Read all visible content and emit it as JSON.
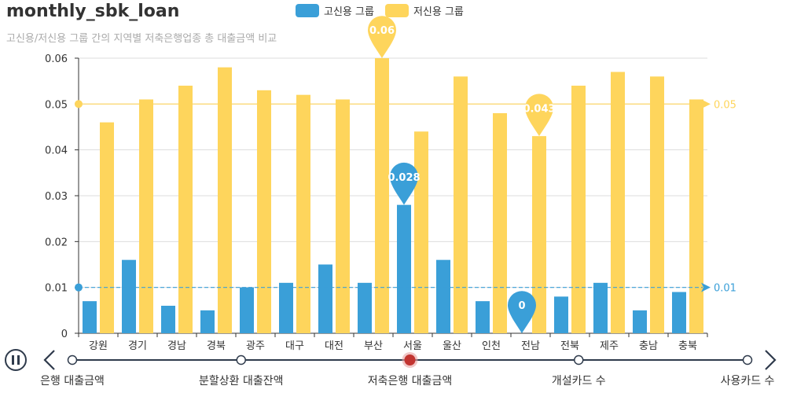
{
  "chart_data": {
    "type": "bar",
    "title": "monthly_sbk_loan",
    "subtitle": "고신용/저신용 그룹 간의 지역별 저축은행업종 총 대출금액 비교",
    "categories": [
      "강원",
      "경기",
      "경남",
      "경북",
      "광주",
      "대구",
      "대전",
      "부산",
      "서울",
      "울산",
      "인천",
      "전남",
      "전북",
      "제주",
      "충남",
      "충북"
    ],
    "series": [
      {
        "name": "고신용 그룹",
        "color": "#3a9fd8",
        "values": [
          0.007,
          0.016,
          0.006,
          0.005,
          0.01,
          0.011,
          0.015,
          0.011,
          0.028,
          0.016,
          0.007,
          0.0,
          0.008,
          0.011,
          0.005,
          0.009
        ]
      },
      {
        "name": "저신용 그룹",
        "color": "#fed55c",
        "values": [
          0.046,
          0.051,
          0.054,
          0.058,
          0.053,
          0.052,
          0.051,
          0.06,
          0.044,
          0.056,
          0.048,
          0.043,
          0.054,
          0.057,
          0.056,
          0.051
        ]
      }
    ],
    "ylim": [
      0,
      0.06
    ],
    "yticks": [
      "0",
      "0.01",
      "0.02",
      "0.03",
      "0.04",
      "0.05",
      "0.06"
    ],
    "grid": true,
    "legend_position": "top-center",
    "mark_points": [
      {
        "series": 0,
        "category": "서울",
        "label": "0.028"
      },
      {
        "series": 0,
        "category": "전남",
        "label": "0"
      },
      {
        "series": 1,
        "category": "부산",
        "label": "0.06"
      },
      {
        "series": 1,
        "category": "전남",
        "label": "0.043"
      }
    ],
    "mark_lines": [
      {
        "series": 0,
        "value": 0.01,
        "label": "0.01"
      },
      {
        "series": 1,
        "value": 0.05,
        "label": "0.05"
      }
    ]
  },
  "timeline": {
    "items": [
      "은행 대출금액",
      "분할상환 대출잔액",
      "저축은행 대출금액",
      "개설카드 수",
      "사용카드 수"
    ],
    "active_index": 2,
    "play_icon": "pause-icon",
    "prev_icon": "chevron-left-icon",
    "next_icon": "chevron-right-icon"
  }
}
